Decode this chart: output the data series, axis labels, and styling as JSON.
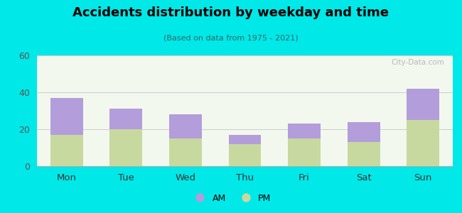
{
  "categories": [
    "Mon",
    "Tue",
    "Wed",
    "Thu",
    "Fri",
    "Sat",
    "Sun"
  ],
  "pm_values": [
    17,
    20,
    15,
    12,
    15,
    13,
    25
  ],
  "am_values": [
    20,
    11,
    13,
    5,
    8,
    11,
    17
  ],
  "am_color": "#b39ddb",
  "pm_color": "#c8d9a0",
  "title": "Accidents distribution by weekday and time",
  "subtitle": "(Based on data from 1975 - 2021)",
  "ylim": [
    0,
    60
  ],
  "yticks": [
    0,
    20,
    40,
    60
  ],
  "background_color": "#00e8e8",
  "plot_bg": "#f2f8ee",
  "watermark": "City-Data.com"
}
